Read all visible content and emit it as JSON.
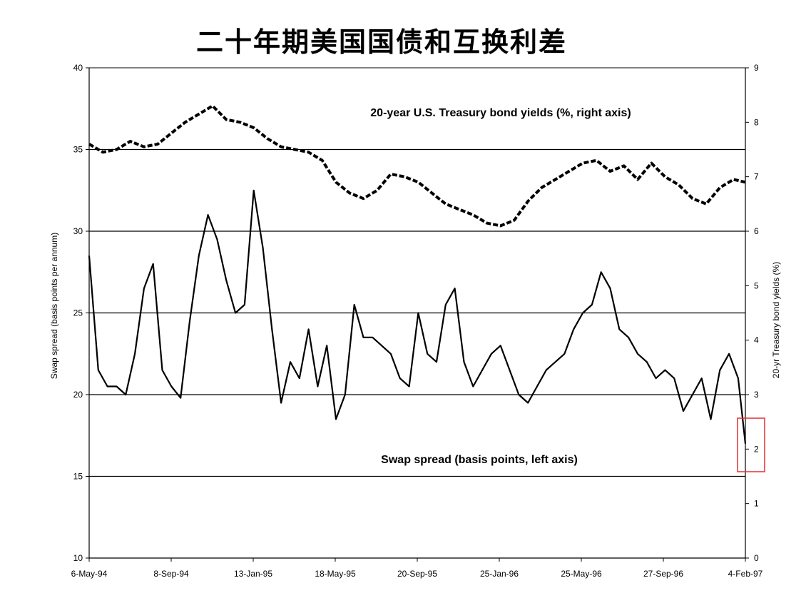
{
  "title": "二十年期美国国债和互换利差",
  "chart_data": {
    "type": "line",
    "title": "二十年期美国国债和互换利差",
    "x_tick_labels": [
      "6-May-94",
      "8-Sep-94",
      "13-Jan-95",
      "18-May-95",
      "20-Sep-95",
      "25-Jan-96",
      "25-May-96",
      "27-Sep-96",
      "4-Feb-97"
    ],
    "x_range": [
      "1994-05-06",
      "1997-02-04"
    ],
    "ylabel_left": "Swap spread (basis points per annum)",
    "ylabel_right": "20-yr Treasury bond yields (%)",
    "ylim_left": [
      10,
      40
    ],
    "ylim_right": [
      0,
      9
    ],
    "yticks_left": [
      10,
      15,
      20,
      25,
      30,
      35,
      40
    ],
    "yticks_right": [
      0,
      1,
      2,
      3,
      4,
      5,
      6,
      7,
      8,
      9
    ],
    "gridlines_left": [
      15,
      20,
      25,
      30,
      35
    ],
    "legend": "none",
    "highlight_box": {
      "color": "#e03030",
      "around": "end of swap spread series, 4-Feb-97"
    },
    "series": [
      {
        "name": "20-year U.S. Treasury bond yields (%, right axis)",
        "axis": "right",
        "style": "dashed",
        "x": [
          "1994-05-06",
          "1994-05-27",
          "1994-06-17",
          "1994-07-08",
          "1994-07-29",
          "1994-08-19",
          "1994-09-09",
          "1994-09-30",
          "1994-10-21",
          "1994-11-11",
          "1994-12-02",
          "1994-12-23",
          "1995-01-13",
          "1995-02-03",
          "1995-02-24",
          "1995-03-17",
          "1995-04-07",
          "1995-04-28",
          "1995-05-19",
          "1995-06-09",
          "1995-06-30",
          "1995-07-21",
          "1995-08-11",
          "1995-09-01",
          "1995-09-22",
          "1995-10-13",
          "1995-11-03",
          "1995-11-24",
          "1995-12-15",
          "1996-01-05",
          "1996-01-26",
          "1996-02-16",
          "1996-03-08",
          "1996-03-29",
          "1996-04-19",
          "1996-05-10",
          "1996-05-31",
          "1996-06-21",
          "1996-07-12",
          "1996-08-02",
          "1996-08-23",
          "1996-09-13",
          "1996-10-04",
          "1996-10-25",
          "1996-11-15",
          "1996-12-06",
          "1996-12-27",
          "1997-01-17",
          "1997-02-04"
        ],
        "values": [
          7.6,
          7.45,
          7.5,
          7.65,
          7.55,
          7.6,
          7.8,
          8.0,
          8.15,
          8.3,
          8.05,
          8.0,
          7.9,
          7.7,
          7.55,
          7.5,
          7.45,
          7.3,
          6.9,
          6.7,
          6.6,
          6.75,
          7.05,
          7.0,
          6.9,
          6.7,
          6.5,
          6.4,
          6.3,
          6.15,
          6.1,
          6.2,
          6.55,
          6.8,
          6.95,
          7.1,
          7.25,
          7.3,
          7.1,
          7.2,
          6.95,
          7.25,
          7.0,
          6.85,
          6.6,
          6.5,
          6.8,
          6.95,
          6.9
        ]
      },
      {
        "name": "Swap spread (basis points, left axis)",
        "axis": "left",
        "style": "solid",
        "x": [
          "1994-05-06",
          "1994-05-20",
          "1994-06-03",
          "1994-06-17",
          "1994-07-01",
          "1994-07-15",
          "1994-07-29",
          "1994-08-12",
          "1994-08-26",
          "1994-09-09",
          "1994-09-23",
          "1994-10-07",
          "1994-10-21",
          "1994-11-04",
          "1994-11-18",
          "1994-12-02",
          "1994-12-16",
          "1994-12-30",
          "1995-01-13",
          "1995-01-27",
          "1995-02-10",
          "1995-02-24",
          "1995-03-10",
          "1995-03-24",
          "1995-04-07",
          "1995-04-21",
          "1995-05-05",
          "1995-05-19",
          "1995-06-02",
          "1995-06-16",
          "1995-06-30",
          "1995-07-14",
          "1995-07-28",
          "1995-08-11",
          "1995-08-25",
          "1995-09-08",
          "1995-09-22",
          "1995-10-06",
          "1995-10-20",
          "1995-11-03",
          "1995-11-17",
          "1995-12-01",
          "1995-12-15",
          "1995-12-29",
          "1996-01-12",
          "1996-01-26",
          "1996-02-09",
          "1996-02-23",
          "1996-03-08",
          "1996-03-22",
          "1996-04-05",
          "1996-04-19",
          "1996-05-03",
          "1996-05-17",
          "1996-05-31",
          "1996-06-14",
          "1996-06-28",
          "1996-07-12",
          "1996-07-26",
          "1996-08-09",
          "1996-08-23",
          "1996-09-06",
          "1996-09-20",
          "1996-10-04",
          "1996-10-18",
          "1996-11-01",
          "1996-11-15",
          "1996-11-29",
          "1996-12-13",
          "1996-12-27",
          "1997-01-10",
          "1997-01-24",
          "1997-02-04"
        ],
        "values": [
          28.5,
          21.5,
          20.5,
          20.5,
          20.0,
          22.5,
          26.5,
          28.0,
          21.5,
          20.5,
          19.8,
          24.5,
          28.5,
          31.0,
          29.5,
          27.0,
          25.0,
          25.5,
          32.5,
          29.0,
          24.0,
          19.5,
          22.0,
          21.0,
          24.0,
          20.5,
          23.0,
          18.5,
          20.0,
          25.5,
          23.5,
          23.5,
          23.0,
          22.5,
          21.0,
          20.5,
          25.0,
          22.5,
          22.0,
          25.5,
          26.5,
          22.0,
          20.5,
          21.5,
          22.5,
          23.0,
          21.5,
          20.0,
          19.5,
          20.5,
          21.5,
          22.0,
          22.5,
          24.0,
          25.0,
          25.5,
          27.5,
          26.5,
          24.0,
          23.5,
          22.5,
          22.0,
          21.0,
          21.5,
          21.0,
          19.0,
          20.0,
          21.0,
          18.5,
          21.5,
          22.5,
          21.0,
          17.0
        ]
      }
    ]
  }
}
